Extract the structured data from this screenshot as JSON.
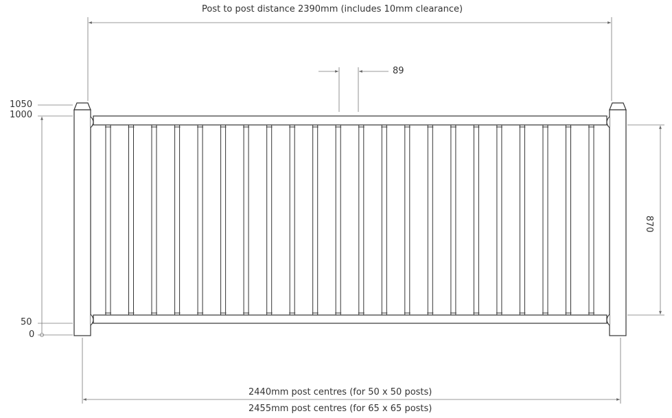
{
  "dimensions": {
    "top_label": "Post to post distance 2390mm (includes 10mm clearance)",
    "baluster_gap_label": "89",
    "rail_span_label": "870",
    "bottom_label_1": "2440mm post centres (for 50 x 50 posts)",
    "bottom_label_2": "2455mm post centres (for 65 x 65 posts)"
  },
  "height_scale": {
    "ticks": [
      "1050",
      "1000",
      "50",
      "0"
    ]
  },
  "panel": {
    "baluster_count": 22
  },
  "colors": {
    "line": "#3a3a3a",
    "dim_line": "#666666",
    "text": "#333333"
  }
}
